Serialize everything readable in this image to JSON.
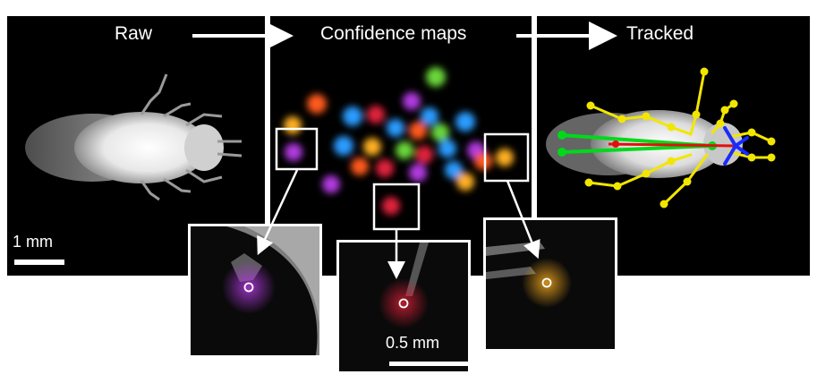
{
  "panels": {
    "raw": {
      "label": "Raw"
    },
    "confidence": {
      "label": "Confidence maps"
    },
    "tracked": {
      "label": "Tracked"
    }
  },
  "scale_bars": {
    "main": "1 mm",
    "inset": "0.5 mm"
  },
  "colors": {
    "panel_background": "#000000",
    "frame": "#ffffff",
    "arrow": "#ffffff",
    "skeleton_legs": "#f2e600",
    "skeleton_body": "#00d91a",
    "skeleton_head": "#1a2bff",
    "skeleton_center": "#e01010",
    "confidence_blobs": [
      "#ff5a1a",
      "#2a9bff",
      "#b03adf",
      "#ffb020",
      "#6bd63a",
      "#e0203a"
    ]
  },
  "icons": [
    "arrow-right-icon",
    "arrow-down-icon",
    "keypoint-ring-icon"
  ]
}
